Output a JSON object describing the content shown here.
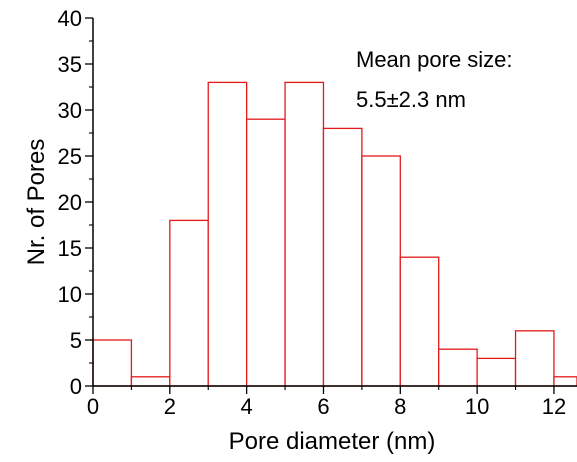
{
  "chart_data": {
    "type": "bar",
    "subtype": "histogram",
    "bins": [
      {
        "start": 0,
        "end": 1,
        "count": 5
      },
      {
        "start": 1,
        "end": 2,
        "count": 1
      },
      {
        "start": 2,
        "end": 3,
        "count": 18
      },
      {
        "start": 3,
        "end": 4,
        "count": 33
      },
      {
        "start": 4,
        "end": 5,
        "count": 29
      },
      {
        "start": 5,
        "end": 6,
        "count": 33
      },
      {
        "start": 6,
        "end": 7,
        "count": 28
      },
      {
        "start": 7,
        "end": 8,
        "count": 25
      },
      {
        "start": 8,
        "end": 9,
        "count": 14
      },
      {
        "start": 9,
        "end": 10,
        "count": 4
      },
      {
        "start": 10,
        "end": 11,
        "count": 3
      },
      {
        "start": 11,
        "end": 12,
        "count": 6
      },
      {
        "start": 12,
        "end": 13,
        "count": 1
      }
    ],
    "xlabel": "Pore diameter (nm)",
    "ylabel": "Nr. of Pores",
    "xlim": [
      0,
      12.6
    ],
    "ylim": [
      0,
      40
    ],
    "xticks": [
      0,
      2,
      4,
      6,
      8,
      10,
      12
    ],
    "yticks": [
      0,
      5,
      10,
      15,
      20,
      25,
      30,
      35,
      40
    ],
    "annotation_lines": [
      "Mean pore size:",
      "5.5±2.3 nm"
    ],
    "bar_edge_color": "#e31a1c",
    "bar_fill_color": "#ffffff",
    "grid": false,
    "legend": "none"
  }
}
